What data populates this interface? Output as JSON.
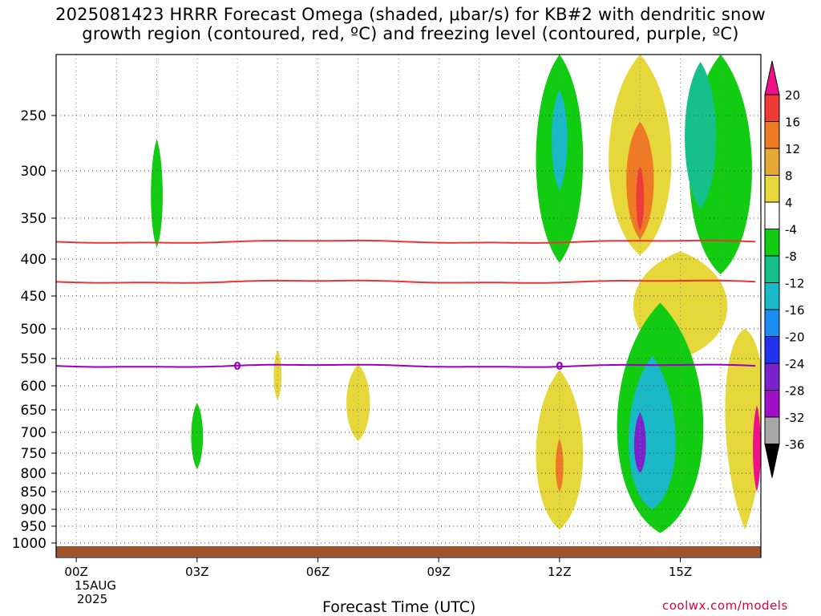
{
  "title_line1": "2025081423 HRRR Forecast Omega (shaded, μbar/s) for KB#2 with dendritic snow",
  "title_line2": "growth region (contoured, red, ºC) and freezing level (contoured, purple, ºC)",
  "x_axis_title": "Forecast Time (UTC)",
  "date_label_1": "15AUG",
  "date_label_2": "2025",
  "credit": "coolwx.com/models",
  "chart_data": {
    "type": "heatmap",
    "x_axis": {
      "title": "Forecast Time (UTC)",
      "range_hours": [
        -0.5,
        17
      ],
      "ticks": [
        {
          "hour": 0,
          "label": "00Z"
        },
        {
          "hour": 3,
          "label": "03Z"
        },
        {
          "hour": 6,
          "label": "06Z"
        },
        {
          "hour": 9,
          "label": "09Z"
        },
        {
          "hour": 12,
          "label": "12Z"
        },
        {
          "hour": 15,
          "label": "15Z"
        }
      ],
      "grid": "dotted vertical lines at 1 h intervals"
    },
    "y_axis": {
      "units": "hPa",
      "range": [
        1030,
        205
      ],
      "ticks": [
        "250",
        "300",
        "350",
        "400",
        "450",
        "500",
        "550",
        "600",
        "650",
        "700",
        "750",
        "800",
        "850",
        "900",
        "950",
        "1000"
      ],
      "grid": "dotted"
    },
    "colorbar": {
      "labels": [
        "20",
        "16",
        "12",
        "8",
        "4",
        "-4",
        "-8",
        "-12",
        "-16",
        "-20",
        "-24",
        "-28",
        "-32",
        "-36"
      ],
      "bins": [
        {
          "from": 20,
          "to": null,
          "color": "#ee1188"
        },
        {
          "from": 16,
          "to": 20,
          "color": "#f03a38"
        },
        {
          "from": 12,
          "to": 16,
          "color": "#ee7a26"
        },
        {
          "from": 8,
          "to": 12,
          "color": "#e6a837"
        },
        {
          "from": 4,
          "to": 8,
          "color": "#e6d83a"
        },
        {
          "from": -4,
          "to": 4,
          "color": "#ffffff"
        },
        {
          "from": -8,
          "to": -4,
          "color": "#11cc11"
        },
        {
          "from": -12,
          "to": -8,
          "color": "#16c08a"
        },
        {
          "from": -16,
          "to": -12,
          "color": "#19b9c8"
        },
        {
          "from": -20,
          "to": -16,
          "color": "#1a8ef0"
        },
        {
          "from": -24,
          "to": -20,
          "color": "#2233ee"
        },
        {
          "from": -28,
          "to": -24,
          "color": "#7a22cc"
        },
        {
          "from": -32,
          "to": -28,
          "color": "#a010c8"
        },
        {
          "from": -36,
          "to": -32,
          "color": "#a8a8a8"
        },
        {
          "from": null,
          "to": -36,
          "color": "#000000"
        }
      ]
    },
    "omega_regions": [
      {
        "value_range": [
          -8,
          -4
        ],
        "center": [
          2.0,
          330
        ],
        "half_width_h": 0.15,
        "p_top": 270,
        "p_bot": 385
      },
      {
        "value_range": [
          -8,
          -4
        ],
        "center": [
          3.0,
          710
        ],
        "half_width_h": 0.15,
        "p_top": 635,
        "p_bot": 790
      },
      {
        "value_range": [
          4,
          8
        ],
        "center": [
          5.0,
          580
        ],
        "half_width_h": 0.1,
        "p_top": 535,
        "p_bot": 630
      },
      {
        "value_range": [
          4,
          8
        ],
        "center": [
          7.0,
          640
        ],
        "half_width_h": 0.3,
        "p_top": 560,
        "p_bot": 720
      },
      {
        "value_range": [
          -8,
          -4
        ],
        "center": [
          12.0,
          290
        ],
        "half_width_h": 0.6,
        "p_top": 205,
        "p_bot": 405
      },
      {
        "value_range": [
          -16,
          -12
        ],
        "center": [
          12.0,
          270
        ],
        "half_width_h": 0.2,
        "p_top": 230,
        "p_bot": 320
      },
      {
        "value_range": [
          4,
          8
        ],
        "center": [
          14.0,
          300
        ],
        "half_width_h": 0.8,
        "p_top": 205,
        "p_bot": 395
      },
      {
        "value_range": [
          12,
          16
        ],
        "center": [
          14.0,
          310
        ],
        "half_width_h": 0.35,
        "p_top": 255,
        "p_bot": 375
      },
      {
        "value_range": [
          16,
          20
        ],
        "center": [
          14.0,
          330
        ],
        "half_width_h": 0.1,
        "p_top": 295,
        "p_bot": 365
      },
      {
        "value_range": [
          4,
          8
        ],
        "center": [
          15.0,
          470
        ],
        "half_width_h": 1.2,
        "p_top": 390,
        "p_bot": 550
      },
      {
        "value_range": [
          -8,
          -4
        ],
        "center": [
          16.0,
          310
        ],
        "half_width_h": 0.8,
        "p_top": 205,
        "p_bot": 420
      },
      {
        "value_range": [
          -12,
          -8
        ],
        "center": [
          15.5,
          270
        ],
        "half_width_h": 0.4,
        "p_top": 210,
        "p_bot": 340
      },
      {
        "value_range": [
          4,
          8
        ],
        "center": [
          12.0,
          780
        ],
        "half_width_h": 0.6,
        "p_top": 570,
        "p_bot": 960
      },
      {
        "value_range": [
          12,
          16
        ],
        "center": [
          12.0,
          790
        ],
        "half_width_h": 0.1,
        "p_top": 715,
        "p_bot": 850
      },
      {
        "value_range": [
          -8,
          -4
        ],
        "center": [
          14.5,
          740
        ],
        "half_width_h": 1.1,
        "p_top": 460,
        "p_bot": 970
      },
      {
        "value_range": [
          -16,
          -12
        ],
        "center": [
          14.3,
          770
        ],
        "half_width_h": 0.6,
        "p_top": 545,
        "p_bot": 900
      },
      {
        "value_range": [
          -28,
          -24
        ],
        "center": [
          14.0,
          740
        ],
        "half_width_h": 0.15,
        "p_top": 655,
        "p_bot": 800
      },
      {
        "value_range": [
          4,
          8
        ],
        "center": [
          16.6,
          560
        ],
        "half_width_h": 0.5,
        "p_top": 500,
        "p_bot": 960
      },
      {
        "value_range": [
          20,
          100
        ],
        "center": [
          16.9,
          740
        ],
        "half_width_h": 0.1,
        "p_top": 640,
        "p_bot": 850
      }
    ],
    "dgz_contours": [
      {
        "color": "#ee3333",
        "approx_pressure_hPa": 378
      },
      {
        "color": "#ee3333",
        "approx_pressure_hPa": 430
      }
    ],
    "freezing_level": {
      "color": "#9900bb",
      "label": "0",
      "approx_pressure_hPa": 563
    }
  }
}
